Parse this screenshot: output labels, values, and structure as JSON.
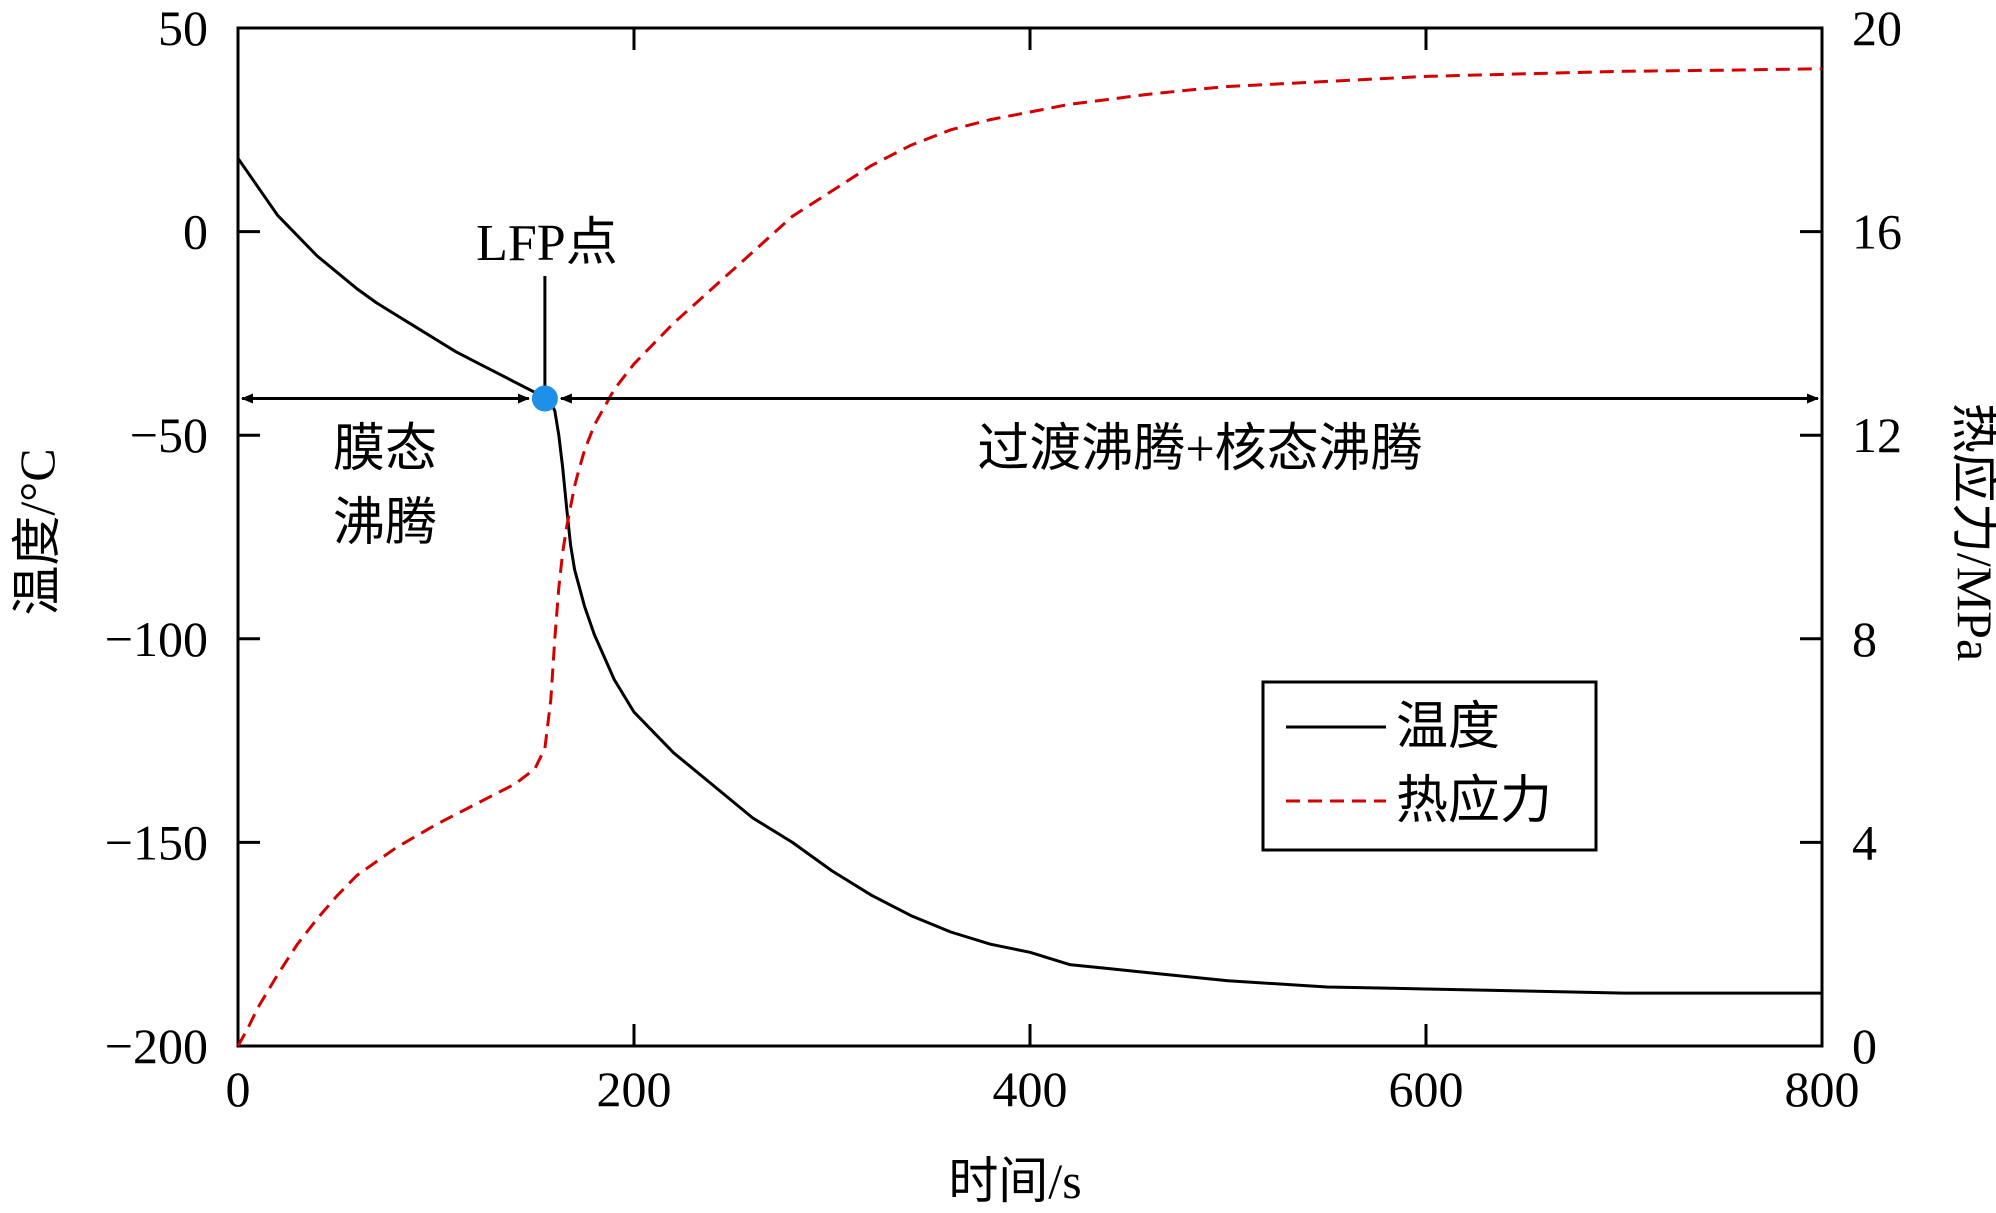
{
  "chart_data": {
    "type": "line",
    "title": "",
    "xlabel": "时间/s",
    "ylabel_left": "温度/°C",
    "ylabel_right": "热应力/MPa",
    "xlim": [
      0,
      800
    ],
    "ylim_left": [
      -200,
      50
    ],
    "ylim_right": [
      0,
      20
    ],
    "x_ticks": [
      0,
      200,
      400,
      600,
      800
    ],
    "y_left_ticks": [
      -200,
      -150,
      -100,
      -50,
      0,
      50
    ],
    "y_left_tick_labels": [
      "−200",
      "−150",
      "−100",
      "−50",
      "0",
      "50"
    ],
    "y_right_ticks": [
      0,
      4,
      8,
      12,
      16,
      20
    ],
    "grid": false,
    "legend_position": "lower-right",
    "series": [
      {
        "name": "温度",
        "axis": "left",
        "color": "#000000",
        "style": "solid",
        "x": [
          0,
          10,
          20,
          30,
          40,
          50,
          60,
          70,
          80,
          90,
          100,
          110,
          120,
          130,
          140,
          150,
          155,
          158,
          160,
          162,
          164,
          166,
          168,
          170,
          175,
          180,
          190,
          200,
          220,
          240,
          260,
          280,
          300,
          320,
          340,
          360,
          380,
          400,
          420,
          440,
          460,
          480,
          500,
          550,
          600,
          650,
          700,
          750,
          800
        ],
        "y": [
          18,
          11,
          4,
          -1,
          -6,
          -10,
          -14,
          -17.5,
          -20.5,
          -23.5,
          -26.5,
          -29.5,
          -32,
          -34.5,
          -37,
          -39.5,
          -41,
          -42,
          -44,
          -50,
          -58,
          -68,
          -77,
          -83,
          -92,
          -99,
          -110,
          -118,
          -128,
          -136,
          -144,
          -150,
          -157,
          -163,
          -168,
          -172,
          -175,
          -177,
          -180,
          -181,
          -182,
          -183,
          -184,
          -185.5,
          -186,
          -186.5,
          -187,
          -187,
          -187
        ]
      },
      {
        "name": "热应力",
        "axis": "right",
        "color": "#d40000",
        "style": "dashed",
        "x": [
          0,
          5,
          10,
          20,
          30,
          40,
          50,
          60,
          80,
          100,
          120,
          140,
          150,
          155,
          158,
          160,
          162,
          164,
          166,
          168,
          170,
          172,
          175,
          180,
          190,
          200,
          220,
          240,
          260,
          280,
          300,
          320,
          340,
          360,
          380,
          400,
          420,
          440,
          460,
          480,
          500,
          550,
          600,
          650,
          700,
          750,
          800
        ],
        "y": [
          0,
          0.35,
          0.75,
          1.4,
          2.0,
          2.5,
          2.95,
          3.35,
          3.9,
          4.35,
          4.75,
          5.15,
          5.45,
          5.85,
          6.8,
          8.0,
          9.0,
          9.7,
          10.2,
          10.6,
          11.0,
          11.3,
          11.7,
          12.2,
          12.9,
          13.4,
          14.2,
          14.9,
          15.6,
          16.3,
          16.8,
          17.3,
          17.7,
          18.0,
          18.2,
          18.35,
          18.5,
          18.6,
          18.7,
          18.78,
          18.85,
          18.95,
          19.05,
          19.1,
          19.15,
          19.17,
          19.2
        ]
      }
    ],
    "annotations": {
      "lfp_label": "LFP点",
      "lfp_point": {
        "x": 155,
        "y": -41
      },
      "lfp_point_color": "#1e90e8",
      "region_left_line1": "膜态",
      "region_left_line2": "沸腾",
      "region_right": "过渡沸腾+核态沸腾"
    }
  }
}
